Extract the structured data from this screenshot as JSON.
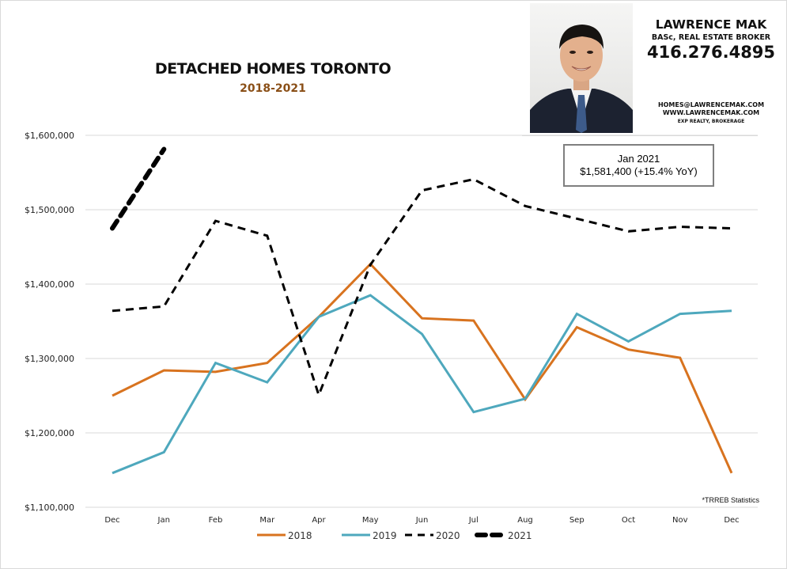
{
  "header": {
    "title": "DETACHED HOMES TORONTO",
    "subtitle": "2018-2021"
  },
  "agent": {
    "name": "LAWRENCE MAK",
    "credentials": "BASc, REAL ESTATE BROKER",
    "phone": "416.276.4895",
    "email": "HOMES@LAWRENCEMAK.COM",
    "website": "WWW.LAWRENCEMAK.COM",
    "brokerage": "EXP REALTY, BROKERAGE"
  },
  "callout": {
    "line1": "Jan 2021",
    "line2": "$1,581,400  (+15.4%  YoY)"
  },
  "source_note": "*TRREB Statistics",
  "colors": {
    "series_2018": "#d8731f",
    "series_2019": "#4ea8bd",
    "series_2020": "#000000",
    "series_2021": "#000000",
    "subtitle": "#8a4f17",
    "grid": "#d9d9d9"
  },
  "chart_data": {
    "type": "line",
    "title": "DETACHED HOMES TORONTO",
    "subtitle": "2018-2021",
    "xlabel": "",
    "ylabel": "",
    "categories": [
      "Dec",
      "Jan",
      "Feb",
      "Mar",
      "Apr",
      "May",
      "Jun",
      "Jul",
      "Aug",
      "Sep",
      "Oct",
      "Nov",
      "Dec"
    ],
    "ylim": [
      1100000,
      1600000
    ],
    "yticks": [
      1100000,
      1200000,
      1300000,
      1400000,
      1500000,
      1600000
    ],
    "ytick_labels": [
      "$1,100,000",
      "$1,200,000",
      "$1,300,000",
      "$1,400,000",
      "$1,500,000",
      "$1,600,000"
    ],
    "grid": true,
    "legend_position": "bottom",
    "series": [
      {
        "name": "2018",
        "style": "solid",
        "values": [
          1250000,
          1284000,
          1282000,
          1294000,
          1356000,
          1427000,
          1354000,
          1351000,
          1245000,
          1342000,
          1312000,
          1301000,
          1146000
        ]
      },
      {
        "name": "2019",
        "style": "solid",
        "values": [
          1146000,
          1174000,
          1294000,
          1268000,
          1356000,
          1385000,
          1333000,
          1228000,
          1246000,
          1360000,
          1323000,
          1360000,
          1364000
        ]
      },
      {
        "name": "2020",
        "style": "dashed",
        "values": [
          1364000,
          1370000,
          1485000,
          1465000,
          1251000,
          1426000,
          1526000,
          1541000,
          1505000,
          1488000,
          1471000,
          1477000,
          1475000
        ]
      },
      {
        "name": "2021",
        "style": "thick-dashed",
        "values": [
          1475000,
          1581400,
          null,
          null,
          null,
          null,
          null,
          null,
          null,
          null,
          null,
          null,
          null
        ]
      }
    ],
    "annotations": [
      "Jan 2021 $1,581,400 (+15.4% YoY)",
      "*TRREB Statistics"
    ]
  }
}
